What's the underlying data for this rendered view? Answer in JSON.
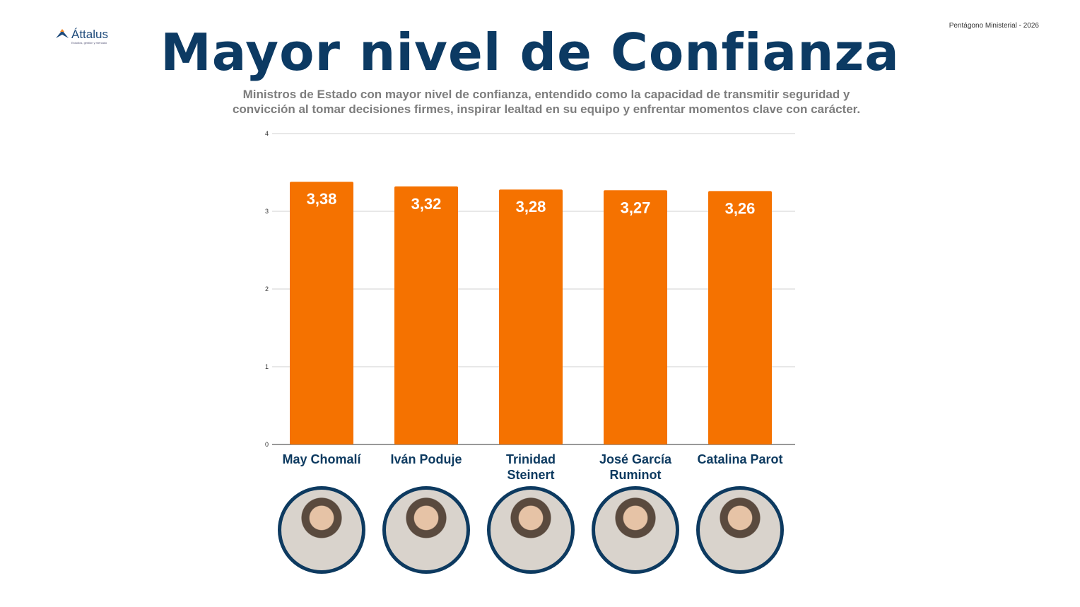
{
  "logo": {
    "name": "Áttalus",
    "tagline": "Estudios, gestión y mercado"
  },
  "header": {
    "top_right": "Pentágono Ministerial - 2026",
    "title": "Mayor nivel de Confianza",
    "subtitle": "Ministros de Estado con mayor nivel de confianza, entendido como la capacidad de  transmitir seguridad y convicción al tomar decisiones firmes, inspirar lealtad en su equipo y enfrentar  momentos clave con carácter."
  },
  "colors": {
    "bar": "#f57200",
    "title": "#0c3a63",
    "label": "#0d3a60"
  },
  "chart_data": {
    "type": "bar",
    "title": "Mayor nivel de Confianza",
    "categories": [
      "May Chomalí",
      "Iván Poduje",
      "Trinidad Steinert",
      "José García Ruminot",
      "Catalina Parot"
    ],
    "category_lines": [
      [
        "May Chomalí"
      ],
      [
        "Iván Poduje"
      ],
      [
        "Trinidad",
        "Steinert"
      ],
      [
        "José García",
        "Ruminot"
      ],
      [
        "Catalina Parot"
      ]
    ],
    "values": [
      3.38,
      3.32,
      3.28,
      3.27,
      3.26
    ],
    "value_labels": [
      "3,38",
      "3,32",
      "3,28",
      "3,27",
      "3,26"
    ],
    "ylim": [
      0,
      4
    ],
    "yticks": [
      "0",
      "1",
      "2",
      "3",
      "4"
    ],
    "grid": true,
    "xlabel": "",
    "ylabel": ""
  }
}
